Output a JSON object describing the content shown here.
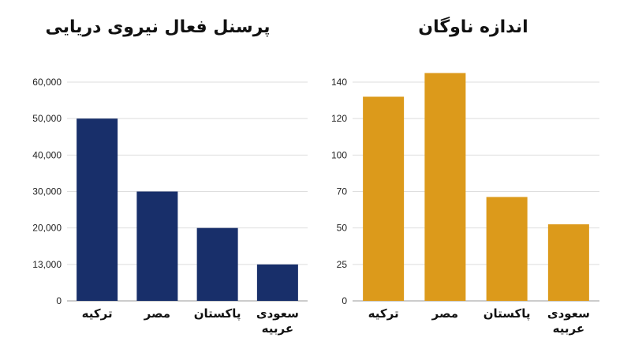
{
  "chart_data": [
    {
      "type": "bar",
      "title": "پرسنل فعال نیروی دریایی",
      "categories": [
        "ترکیه",
        "مصر",
        "پاکستان",
        "سعودی عربیه"
      ],
      "values": [
        50000,
        30000,
        20000,
        13000
      ],
      "yticks": [
        "0",
        "13,000",
        "20,000",
        "30,000",
        "40,000",
        "50,000",
        "60,000"
      ],
      "ylim": [
        0,
        60000
      ],
      "grid": true,
      "legend": "none",
      "color": "#182f6a"
    },
    {
      "type": "bar",
      "title": "اندازه ناوگان",
      "categories": [
        "ترکیه",
        "مصر",
        "پاکستان",
        "سعودی عربیه"
      ],
      "values": [
        132,
        145,
        67,
        52
      ],
      "yticks": [
        "0",
        "25",
        "50",
        "70",
        "100",
        "120",
        "140"
      ],
      "ylim": [
        0,
        140
      ],
      "grid": true,
      "legend": "none",
      "color": "#dc9a1b"
    }
  ]
}
